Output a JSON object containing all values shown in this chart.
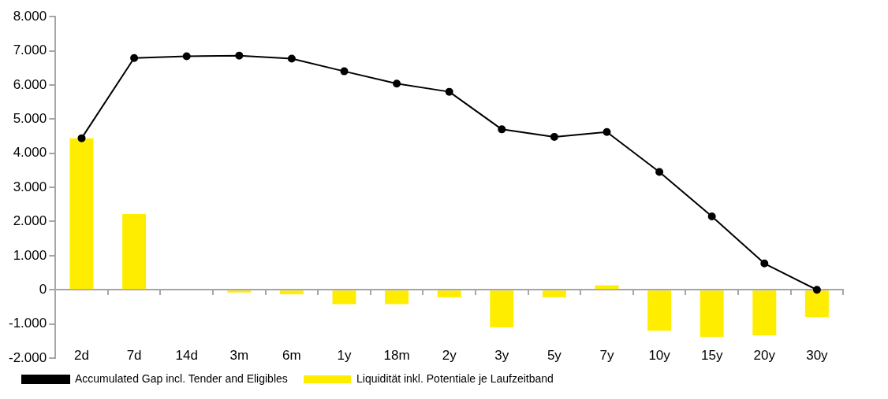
{
  "chart_data": {
    "type": "bar",
    "categories": [
      "2d",
      "7d",
      "14d",
      "3m",
      "6m",
      "1y",
      "18m",
      "2y",
      "3y",
      "5y",
      "7y",
      "10y",
      "15y",
      "20y",
      "30y"
    ],
    "series": [
      {
        "name": "Liquidität inkl. Potentiale je Laufzeitband",
        "color": "#ffed00",
        "values": [
          4440,
          2220,
          0,
          -80,
          -130,
          -420,
          -420,
          -220,
          -1100,
          -220,
          130,
          -1200,
          -1380,
          -1340,
          -800
        ]
      },
      {
        "name": "Accumulated Gap incl. Tender and Eligibles",
        "type": "line",
        "color": "#000000",
        "marker": "circle",
        "values": [
          4440,
          6790,
          6840,
          6860,
          6770,
          6400,
          6040,
          5800,
          4700,
          4480,
          4620,
          3450,
          2150,
          770,
          0
        ]
      }
    ],
    "ylim": [
      -2000,
      8000
    ],
    "yticks": [
      {
        "value": -2000,
        "label": "-2.000"
      },
      {
        "value": -1000,
        "label": "-1.000"
      },
      {
        "value": 0,
        "label": "0"
      },
      {
        "value": 1000,
        "label": "1.000"
      },
      {
        "value": 2000,
        "label": "2.000"
      },
      {
        "value": 3000,
        "label": "3.000"
      },
      {
        "value": 4000,
        "label": "4.000"
      },
      {
        "value": 5000,
        "label": "5.000"
      },
      {
        "value": 6000,
        "label": "6.000"
      },
      {
        "value": 7000,
        "label": "7.000"
      },
      {
        "value": 8000,
        "label": "8.000"
      }
    ],
    "legend": "bottom left"
  }
}
